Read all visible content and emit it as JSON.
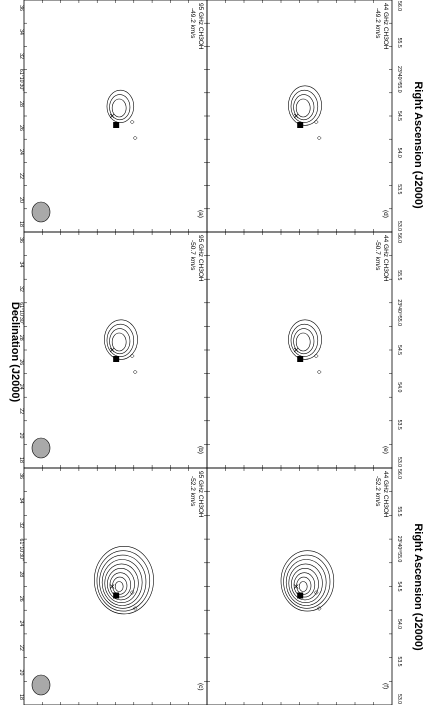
{
  "figure": {
    "x_axis_title": "Right Ascension (J2000)",
    "y_axis_title": "Declination (J2000)",
    "dec_ticks": [
      "36",
      "34",
      "32",
      "61°10'30\"",
      "28",
      "26",
      "24",
      "22",
      "20",
      "18"
    ],
    "ra_ticks": [
      "56.0",
      "55.5",
      "23ʰ40ᵐ55.0",
      "54.5",
      "54.0",
      "53.5",
      "53.0"
    ],
    "ra_ticks_short": [
      "55.5",
      "23ʰ40ᵐ55.0",
      "54.5",
      "54.0",
      "53.5",
      "53.0 56.0"
    ],
    "panels": [
      {
        "id": "a",
        "label": "(a)",
        "line": "95 GHz CH3OH",
        "velocity": "-49.2 km/s",
        "beam": true,
        "contours": 3
      },
      {
        "id": "b",
        "label": "(b)",
        "line": "95 GHz CH3OH",
        "velocity": "-50.7 km/s",
        "beam": true,
        "contours": 4
      },
      {
        "id": "c",
        "label": "(c)",
        "line": "95 GHz CH3OH",
        "velocity": "-52.2 km/s",
        "beam": true,
        "contours": 9
      },
      {
        "id": "d",
        "label": "(d)",
        "line": "44 GHz CH3OH",
        "velocity": "-49.2 km/s",
        "beam": false,
        "contours": 4
      },
      {
        "id": "e",
        "label": "(e)",
        "line": "44 GHz CH3OH",
        "velocity": "-50.7 km/s",
        "beam": false,
        "contours": 4
      },
      {
        "id": "f",
        "label": "(f)",
        "line": "44 GHz CH3OH",
        "velocity": "-52.2 km/s",
        "beam": false,
        "contours": 8
      }
    ]
  }
}
